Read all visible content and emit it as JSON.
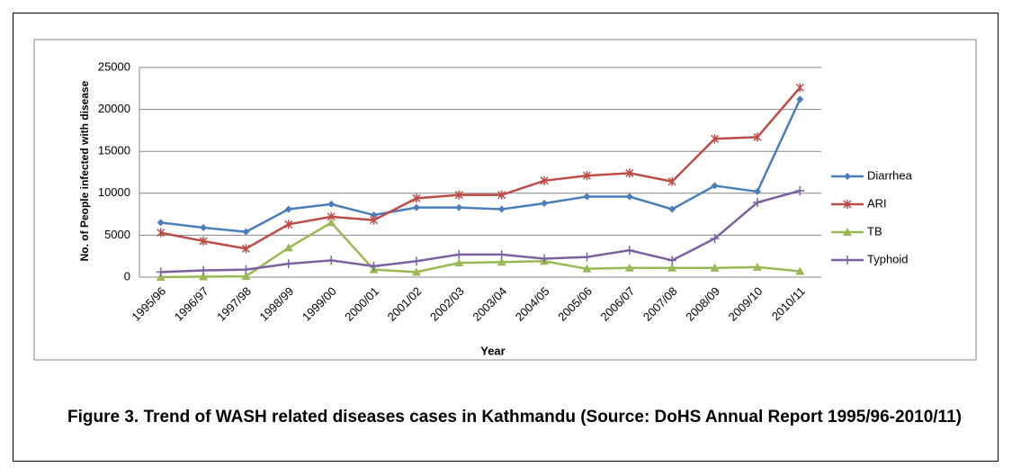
{
  "chart_data": {
    "type": "line",
    "caption": "Figure 3. Trend of WASH related diseases cases in Kathmandu (Source: DoHS Annual Report 1995/96-2010/11)",
    "x_label": "Year",
    "y_label": "No. of People infected with disease",
    "categories": [
      "1995/96",
      "1996/97",
      "1997/98",
      "1998/99",
      "1999/00",
      "2000/01",
      "2001/02",
      "2002/03",
      "2003/04",
      "2004/05",
      "2005/06",
      "2006/07",
      "2007/08",
      "2008/09",
      "2009/10",
      "2010/11"
    ],
    "series": [
      {
        "name": "Diarrhea",
        "color": "#4a7ebb",
        "marker": "diamond",
        "values": [
          6500,
          5900,
          5400,
          8100,
          8700,
          7400,
          8300,
          8300,
          8100,
          8800,
          9600,
          9600,
          8100,
          10900,
          10200,
          21200
        ]
      },
      {
        "name": "ARI",
        "color": "#be4b48",
        "marker": "star",
        "values": [
          5300,
          4300,
          3400,
          6300,
          7200,
          6800,
          9400,
          9800,
          9800,
          11500,
          12100,
          12400,
          11400,
          16500,
          16700,
          22600
        ]
      },
      {
        "name": "TB",
        "color": "#98b954",
        "marker": "triangle",
        "values": [
          0,
          50,
          100,
          3500,
          6500,
          900,
          600,
          1700,
          1800,
          1900,
          1000,
          1100,
          1100,
          1100,
          1200,
          700
        ]
      },
      {
        "name": "Typhoid",
        "color": "#7d60a0",
        "marker": "plus",
        "values": [
          600,
          800,
          900,
          1600,
          2000,
          1300,
          1900,
          2700,
          2700,
          2200,
          2400,
          3200,
          2000,
          4600,
          8900,
          10300
        ]
      }
    ],
    "ylim": [
      0,
      25000
    ],
    "yticks": [
      0,
      5000,
      10000,
      15000,
      20000,
      25000
    ],
    "grid": true,
    "legend": "right"
  }
}
